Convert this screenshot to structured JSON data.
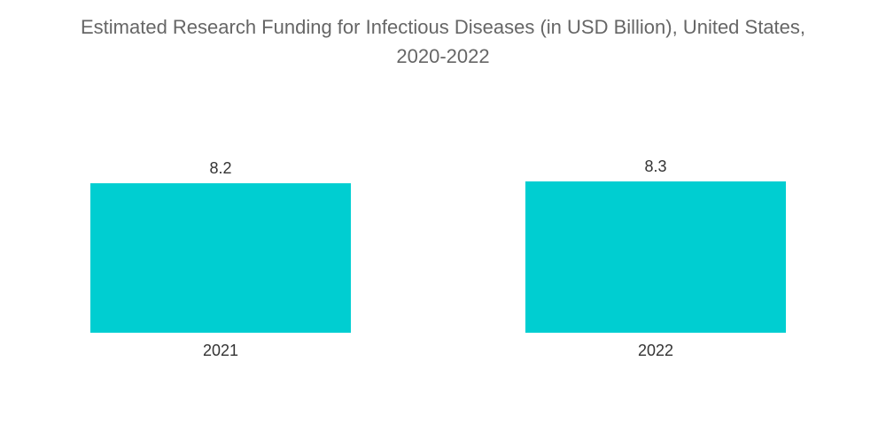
{
  "chart_data": {
    "type": "bar",
    "title_line1": "Estimated Research Funding for Infectious Diseases (in USD Billion), United States,",
    "title_line2": "2020-2022",
    "categories": [
      "2021",
      "2022"
    ],
    "values": [
      8.2,
      8.3
    ],
    "value_labels": [
      "8.2",
      "8.3"
    ],
    "xlabel": "",
    "ylabel": "",
    "grid": false,
    "legend": "none",
    "bar_color": "#00CED1"
  }
}
